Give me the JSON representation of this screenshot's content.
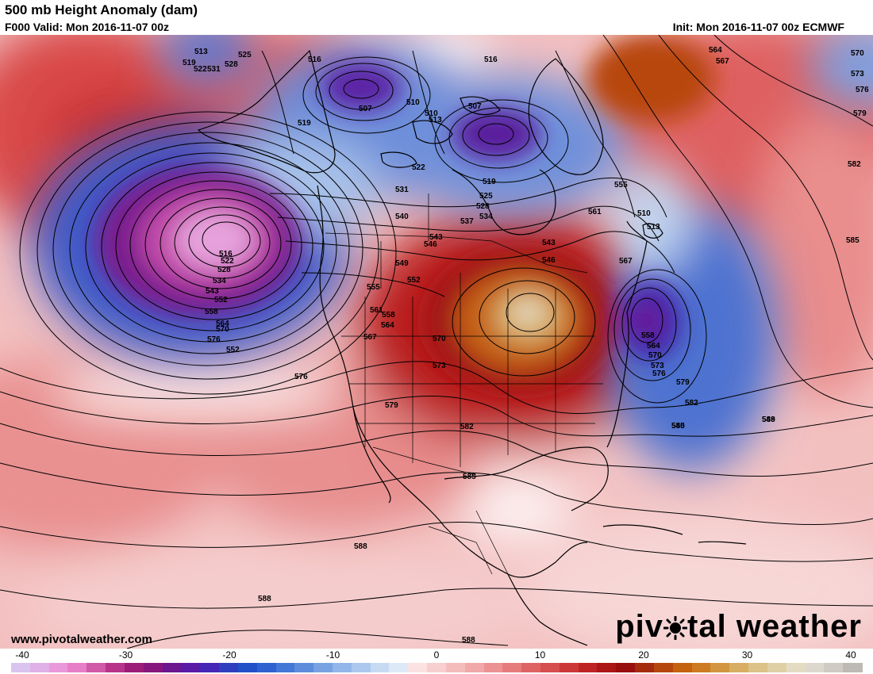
{
  "header": {
    "title": "500 mb Height Anomaly (dam)",
    "valid": "F000 Valid: Mon 2016-11-07 00z",
    "init": "Init: Mon 2016-11-07 00z ECMWF"
  },
  "footer": {
    "website": "www.pivotalweather.com",
    "logo_left": "piv",
    "logo_right": "tal weather"
  },
  "colorbar": {
    "min": -40,
    "max": 40,
    "tick_labels": [
      "-40",
      "-30",
      "-20",
      "-10",
      "0",
      "10",
      "20",
      "30",
      "40"
    ],
    "neg_colors": [
      "#d8c4ee",
      "#e0b0e8",
      "#ea98dc",
      "#e67fc7",
      "#d05aa8",
      "#b8348a",
      "#9c1d78",
      "#86167e",
      "#6c1690",
      "#5a1aa6",
      "#4626b6",
      "#2f3ebe",
      "#2250c8",
      "#2f62d0",
      "#4478d6",
      "#5d8cdc",
      "#78a2e2",
      "#92b6e8",
      "#acc8ee",
      "#c6dbf2",
      "#dde9f6"
    ],
    "pos_colors": [
      "#fbe1e1",
      "#f8cfcf",
      "#f5bcbc",
      "#f1a8a8",
      "#ec9292",
      "#e67c7c",
      "#de6464",
      "#d64e4e",
      "#cc3838",
      "#be2424",
      "#ac1616",
      "#980e0e",
      "#a42c0c",
      "#b6470c",
      "#c4620f",
      "#cc7b22",
      "#d29640",
      "#d8ae62",
      "#dcc286",
      "#dfd1a6",
      "#e3dcc2",
      "#ddd8ce",
      "#cfcbc4",
      "#bdb9b3"
    ]
  },
  "contour_labels": [
    "513",
    "519",
    "522",
    "525",
    "528",
    "531",
    "516",
    "507",
    "510",
    "513",
    "510",
    "507",
    "519",
    "522",
    "516",
    "564",
    "567",
    "570",
    "573",
    "576",
    "579",
    "582",
    "585",
    "519",
    "525",
    "528",
    "531",
    "534",
    "537",
    "540",
    "543",
    "546",
    "549",
    "552",
    "555",
    "561",
    "558",
    "564",
    "567",
    "570",
    "573",
    "576",
    "579",
    "582",
    "585",
    "540",
    "549",
    "555",
    "561",
    "567",
    "543",
    "546",
    "510",
    "513",
    "516",
    "522",
    "528",
    "534",
    "543",
    "552",
    "558",
    "564",
    "570",
    "576",
    "552",
    "558",
    "564",
    "570",
    "573",
    "576",
    "579",
    "582",
    "585",
    "588",
    "588",
    "588",
    "588"
  ]
}
